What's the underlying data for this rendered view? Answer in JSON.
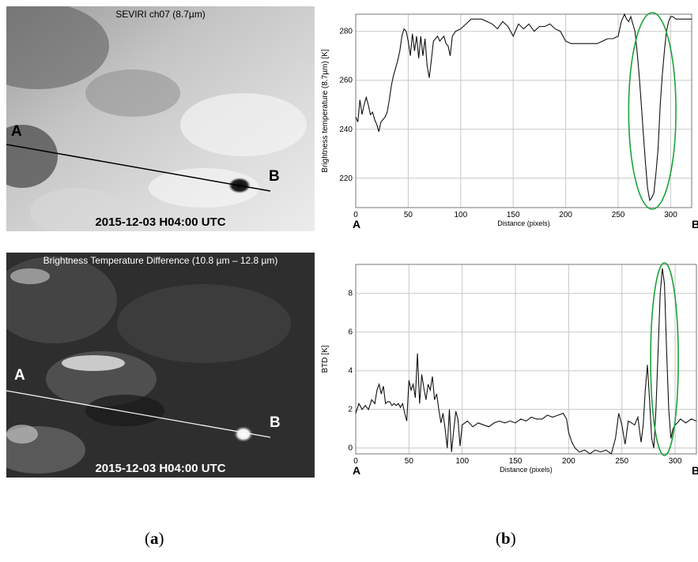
{
  "panel_a_top": {
    "title": "SEVIRI ch07 (8.7µm)",
    "timestamp": "2015-12-03 H04:00 UTC",
    "point_a": "A",
    "point_b": "B"
  },
  "panel_a_bottom": {
    "title": "Brightness Temperature Difference  (10.8 µm – 12.8 µm)",
    "timestamp": "2015-12-03 H04:00 UTC",
    "point_a": "A",
    "point_b": "B"
  },
  "captions": {
    "a": "a",
    "b": "b"
  },
  "chart_data": [
    {
      "type": "line",
      "xlabel": "Distance (pixels)",
      "ylabel": "Brightness temperature (8.7µm) [K]",
      "xlim": [
        0,
        320
      ],
      "ylim": [
        208,
        287
      ],
      "xticks": [
        0,
        50,
        100,
        150,
        200,
        250,
        300
      ],
      "yticks": [
        220,
        240,
        260,
        280
      ],
      "grid": true,
      "end_labels": {
        "start": "A",
        "end": "B"
      },
      "annotation": {
        "shape": "ellipse",
        "color": "#1aa33a",
        "x_range": [
          260,
          305
        ],
        "y_range": [
          208,
          287
        ]
      },
      "series": [
        {
          "x": [
            0,
            2,
            4,
            6,
            8,
            10,
            12,
            14,
            16,
            18,
            20,
            22,
            24,
            26,
            28,
            30,
            32,
            34,
            36,
            38,
            40,
            42,
            44,
            46,
            48,
            50,
            52,
            54,
            56,
            58,
            60,
            62,
            64,
            66,
            68,
            70,
            72,
            74,
            76,
            78,
            80,
            82,
            84,
            86,
            88,
            90,
            92,
            95,
            100,
            105,
            110,
            115,
            120,
            125,
            130,
            135,
            140,
            145,
            150,
            155,
            160,
            165,
            170,
            175,
            180,
            185,
            190,
            195,
            200,
            205,
            210,
            215,
            220,
            225,
            230,
            235,
            240,
            245,
            250,
            253,
            256,
            258,
            260,
            262,
            264,
            266,
            268,
            270,
            272,
            274,
            276,
            278,
            280,
            282,
            284,
            286,
            288,
            290,
            292,
            294,
            296,
            298,
            300,
            302,
            305,
            310,
            315,
            320
          ],
          "y": [
            245,
            243,
            252,
            246,
            250,
            253,
            250,
            246,
            247,
            244,
            242,
            239,
            243,
            244,
            245,
            247,
            252,
            258,
            262,
            265,
            268,
            272,
            278,
            281,
            280,
            276,
            270,
            279,
            272,
            278,
            269,
            278,
            270,
            277,
            266,
            261,
            268,
            276,
            277,
            278,
            276,
            277,
            278,
            275,
            274,
            270,
            278,
            280,
            281,
            283,
            285,
            285,
            285,
            284,
            283,
            281,
            284,
            282,
            278,
            283,
            281,
            283,
            280,
            282,
            282,
            283,
            281,
            280,
            276,
            275,
            275,
            275,
            275,
            275,
            275,
            276,
            277,
            277,
            278,
            284,
            287,
            285,
            284,
            286,
            283,
            280,
            272,
            262,
            250,
            238,
            226,
            216,
            211,
            212,
            214,
            222,
            232,
            250,
            262,
            272,
            280,
            284,
            286,
            286,
            285,
            285,
            285,
            285
          ]
        }
      ]
    },
    {
      "type": "line",
      "xlabel": "Distance (pixels)",
      "ylabel": "BTD [K]",
      "xlim": [
        0,
        320
      ],
      "ylim": [
        -0.3,
        9.5
      ],
      "xticks": [
        0,
        50,
        100,
        150,
        200,
        250,
        300
      ],
      "yticks": [
        0,
        2,
        4,
        6,
        8
      ],
      "grid": true,
      "end_labels": {
        "start": "A",
        "end": "B"
      },
      "annotation": {
        "shape": "ellipse",
        "color": "#1aa33a",
        "x_range": [
          277,
          303
        ],
        "y_range": [
          -0.3,
          9.5
        ]
      },
      "series": [
        {
          "x": [
            0,
            3,
            6,
            9,
            12,
            15,
            18,
            20,
            22,
            24,
            26,
            28,
            30,
            32,
            34,
            36,
            38,
            40,
            42,
            44,
            46,
            48,
            50,
            52,
            54,
            56,
            58,
            60,
            62,
            64,
            66,
            68,
            70,
            72,
            74,
            76,
            78,
            80,
            82,
            84,
            86,
            88,
            90,
            92,
            94,
            96,
            98,
            100,
            105,
            110,
            115,
            120,
            125,
            130,
            135,
            140,
            145,
            150,
            155,
            160,
            165,
            170,
            175,
            180,
            185,
            190,
            195,
            198,
            200,
            203,
            206,
            210,
            215,
            220,
            225,
            230,
            235,
            240,
            244,
            247,
            250,
            253,
            256,
            259,
            262,
            265,
            268,
            270,
            272,
            274,
            276,
            278,
            280,
            282,
            284,
            286,
            288,
            290,
            292,
            294,
            296,
            298,
            300,
            302,
            305,
            310,
            315,
            320
          ],
          "y": [
            1.8,
            2.3,
            2.0,
            2.2,
            2.0,
            2.5,
            2.3,
            3.0,
            3.3,
            2.8,
            3.2,
            2.3,
            2.4,
            2.4,
            2.2,
            2.3,
            2.2,
            2.3,
            2.1,
            2.3,
            1.8,
            1.4,
            3.5,
            3.0,
            3.3,
            2.6,
            4.9,
            2.3,
            3.8,
            3.1,
            2.5,
            3.3,
            3.0,
            3.7,
            2.5,
            2.8,
            2.0,
            1.3,
            1.8,
            1.0,
            0.0,
            2.0,
            -0.2,
            0.9,
            1.9,
            1.5,
            0.1,
            1.2,
            1.4,
            1.1,
            1.3,
            1.2,
            1.1,
            1.3,
            1.4,
            1.3,
            1.4,
            1.3,
            1.5,
            1.4,
            1.6,
            1.5,
            1.5,
            1.7,
            1.6,
            1.7,
            1.8,
            1.5,
            0.8,
            0.3,
            0.0,
            -0.2,
            -0.1,
            -0.3,
            -0.1,
            -0.2,
            -0.1,
            -0.3,
            0.5,
            1.8,
            1.2,
            0.2,
            1.4,
            1.3,
            1.2,
            1.6,
            0.3,
            1.2,
            3.0,
            4.3,
            2.5,
            0.5,
            0.0,
            2.0,
            5.0,
            8.0,
            9.3,
            8.5,
            5.0,
            2.0,
            0.5,
            1.0,
            1.2,
            1.3,
            1.5,
            1.3,
            1.5,
            1.4
          ]
        }
      ]
    }
  ]
}
